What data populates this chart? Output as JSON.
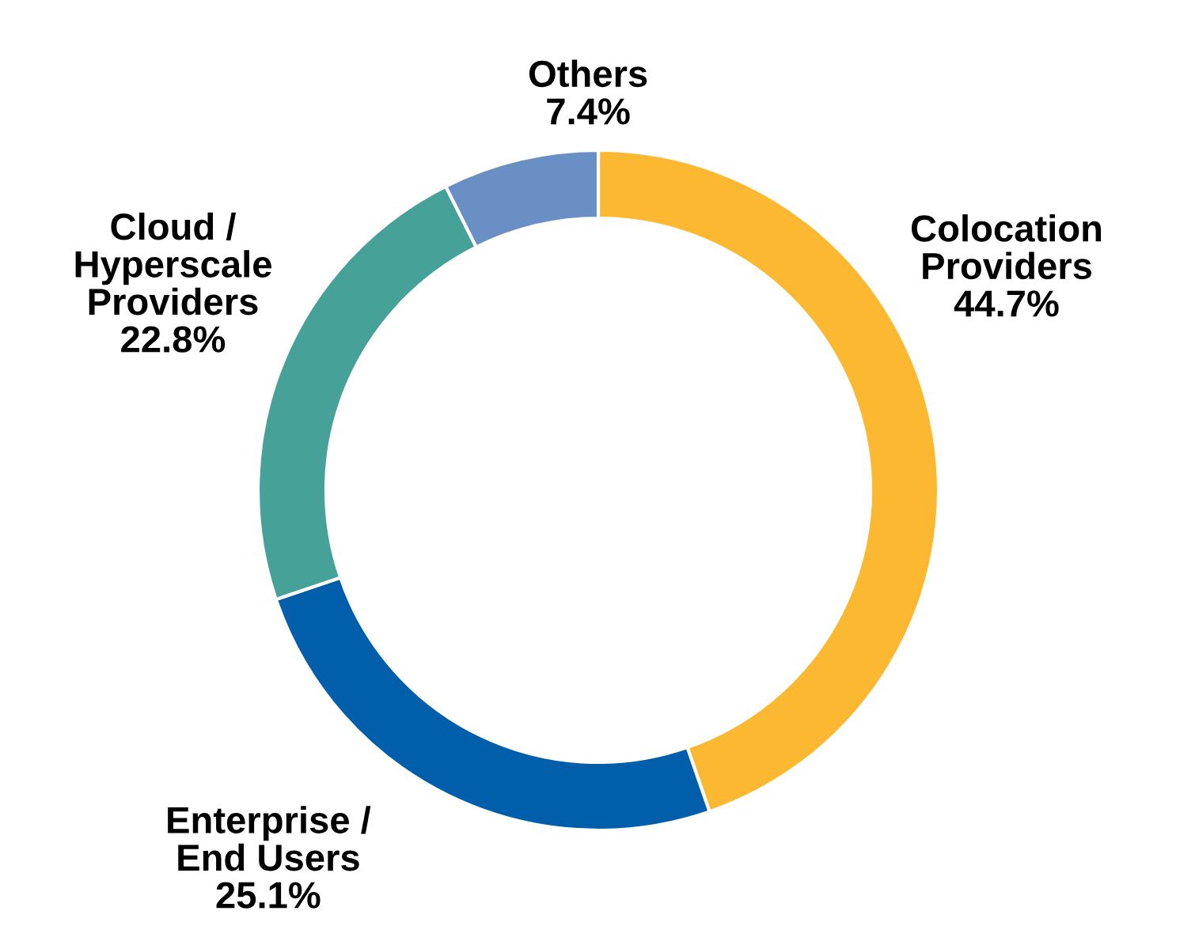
{
  "chart_data": {
    "type": "donut",
    "categories": [
      "Colocation\nProviders",
      "Enterprise /\nEnd Users",
      "Cloud /\nHyperscale\nProviders",
      "Others"
    ],
    "values": [
      44.7,
      25.1,
      22.8,
      7.4
    ],
    "colors": [
      "#fbb830",
      "#005eaa",
      "#46a298",
      "#6a8fc4"
    ],
    "value_labels": [
      "44.7%",
      "25.1%",
      "22.8%",
      "7.4%"
    ]
  }
}
